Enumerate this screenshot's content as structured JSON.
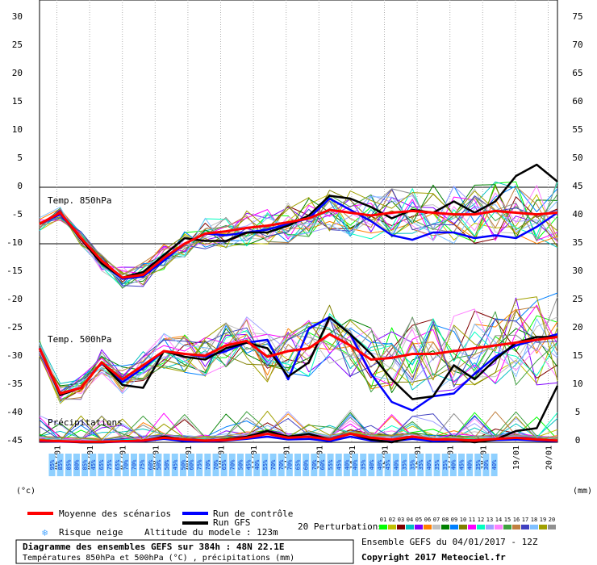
{
  "chart_data": {
    "type": "line",
    "title": "Diagramme des ensembles GEFS sur 384h : 48N 22.1E",
    "subtitle": "Températures 850hPa et 500hPa (°C) , précipitations (mm)",
    "y_left_unit": "(°c)",
    "y_right_unit": "(mm)",
    "y_left_ticks": [
      "30",
      "25",
      "20",
      "15",
      "10",
      "5",
      "0",
      "-5",
      "-10",
      "-15",
      "-20",
      "-25",
      "-30",
      "-35",
      "-40",
      "-45"
    ],
    "y_right_ticks": [
      "75",
      "70",
      "65",
      "60",
      "55",
      "50",
      "45",
      "40",
      "35",
      "30",
      "25",
      "20",
      "15",
      "10",
      "5",
      "0"
    ],
    "ylim_temp": [
      -45,
      30
    ],
    "ylim_precip": [
      0,
      75
    ],
    "x_labels": [
      "05/01",
      "06/01",
      "07/01",
      "08/01",
      "09/01",
      "10/01",
      "11/01",
      "12/01",
      "13/01",
      "14/01",
      "15/01",
      "16/01",
      "17/01",
      "18/01",
      "19/01",
      "20/01"
    ],
    "panel_labels": {
      "t850": "Temp. 850hPa",
      "t500": "Temp. 500hPa",
      "precip": "Précipitations"
    },
    "t850": {
      "mean": [
        -6.5,
        -4.5,
        -9,
        -13,
        -16,
        -15.5,
        -12.5,
        -10,
        -8.2,
        -7.8,
        -7.2,
        -6.8,
        -6.2,
        -5.5,
        -4,
        -4.5,
        -5,
        -4.5,
        -4.2,
        -4.5,
        -4.8,
        -4.8,
        -4.2,
        -4.5,
        -4.8,
        -4.5
      ],
      "control": [
        -6.5,
        -4.8,
        -9,
        -13.5,
        -16.2,
        -15.8,
        -13,
        -10,
        -8.2,
        -8.5,
        -8,
        -7.5,
        -6.5,
        -5.5,
        -2,
        -4,
        -6,
        -8.5,
        -9.3,
        -8,
        -8,
        -9,
        -8.5,
        -9,
        -7,
        -4.5
      ],
      "gfs": [
        -6.5,
        -4.5,
        -9.2,
        -13.5,
        -16,
        -15,
        -12,
        -9,
        -9.5,
        -9.5,
        -8,
        -8,
        -6.8,
        -5,
        -1.5,
        -2,
        -3.5,
        -5.5,
        -4,
        -4.5,
        -2.5,
        -4.5,
        -2.5,
        2,
        4,
        1
      ]
    },
    "t500": {
      "mean": [
        -28.5,
        -36.5,
        -35.5,
        -31,
        -34,
        -31.5,
        -29,
        -29.5,
        -29.8,
        -28,
        -27.2,
        -30,
        -29,
        -28.5,
        -26,
        -28,
        -30.5,
        -30.2,
        -29.5,
        -29.5,
        -29,
        -28.5,
        -28,
        -27.5,
        -27,
        -26.5
      ],
      "control": [
        -28.5,
        -36.5,
        -35.5,
        -31,
        -34.5,
        -32,
        -29,
        -29.5,
        -30,
        -29,
        -27.5,
        -27,
        -34,
        -25,
        -23,
        -26,
        -33,
        -38,
        -39.5,
        -37,
        -36.5,
        -33,
        -30,
        -28,
        -27,
        -26
      ],
      "gfs": [
        -28.5,
        -36.8,
        -35.5,
        -31,
        -35,
        -35.5,
        -29,
        -30,
        -30.5,
        -28.5,
        -27.5,
        -28.5,
        -33.5,
        -31,
        -23,
        -26,
        -29.5,
        -34,
        -37.5,
        -37,
        -31.5,
        -34,
        -30.5,
        -27.5,
        -26.5,
        -26.5
      ]
    },
    "precip": {
      "mean": [
        0.3,
        0.2,
        0.1,
        0.1,
        0.2,
        0.3,
        0.8,
        0.5,
        0.3,
        0.4,
        0.8,
        1.5,
        0.8,
        1,
        0.5,
        1.5,
        0.8,
        0.5,
        1,
        0.5,
        0.5,
        0.3,
        0.6,
        0.8,
        0.5,
        0.3
      ],
      "control": [
        0.2,
        0.1,
        0,
        0,
        0.1,
        0.2,
        0.6,
        0.2,
        0.1,
        0.3,
        0.6,
        1,
        0.5,
        0.6,
        0.2,
        1,
        0.3,
        0.2,
        0.6,
        0.2,
        0.3,
        0.2,
        0.4,
        0.5,
        0.3,
        0.2
      ],
      "gfs": [
        0.3,
        0.2,
        0,
        0,
        0.2,
        0.3,
        1,
        0.5,
        0.2,
        0.5,
        1,
        2,
        1,
        1.5,
        0.5,
        1.5,
        0.5,
        0,
        1,
        0.5,
        0.5,
        0,
        0.5,
        2,
        2.5,
        10
      ]
    },
    "snow_risk": [
      "95%",
      "85%",
      "85%",
      "80%",
      "85%",
      "45%",
      "65%",
      "75%",
      "65%",
      "70%",
      "70%",
      "75%",
      "60%",
      "50%",
      "50%",
      "45%",
      "50%",
      "60%",
      "75%",
      "70%",
      "70%",
      "65%",
      "70%",
      "50%",
      "45%",
      "40%",
      "55%",
      "70%",
      "70%",
      "70%",
      "65%",
      "60%",
      "70%",
      "60%",
      "55%",
      "45%",
      "40%",
      "40%",
      "35%",
      "40%",
      "40%",
      "45%",
      "40%",
      "35%",
      "35%",
      "35%",
      "40%",
      "35%",
      "35%",
      "40%",
      "45%",
      "40%",
      "35%",
      "30%",
      "40%"
    ],
    "perturbation_ids": [
      "01",
      "02",
      "03",
      "04",
      "05",
      "06",
      "07",
      "08",
      "09",
      "10",
      "11",
      "12",
      "13",
      "14",
      "15",
      "16",
      "17",
      "18",
      "19",
      "20"
    ],
    "perturbation_colors": [
      "#00ff00",
      "#c0c000",
      "#800000",
      "#00c0c0",
      "#8000ff",
      "#ff8000",
      "#c0c0c0",
      "#008000",
      "#0080ff",
      "#808000",
      "#ff00ff",
      "#00ffc0",
      "#a0a0ff",
      "#ff80ff",
      "#40a040",
      "#c08040",
      "#4040c0",
      "#80c0ff",
      "#a0a000",
      "#909090"
    ],
    "legend": {
      "mean": "Moyenne des scénarios",
      "control": "Run de contrôle",
      "gfs": "Run GFS",
      "perturbations": "20 Perturbations",
      "snow": "Risque neige",
      "altitude": "Altitude du modele : 123m",
      "ensemble": "Ensemble GEFS du 04/01/2017 - 12Z",
      "copyright": "Copyright 2017 Meteociel.fr"
    },
    "colors": {
      "mean": "#ff0000",
      "control": "#0000ff",
      "gfs": "#000000",
      "snow": "#4fa8ff"
    }
  }
}
